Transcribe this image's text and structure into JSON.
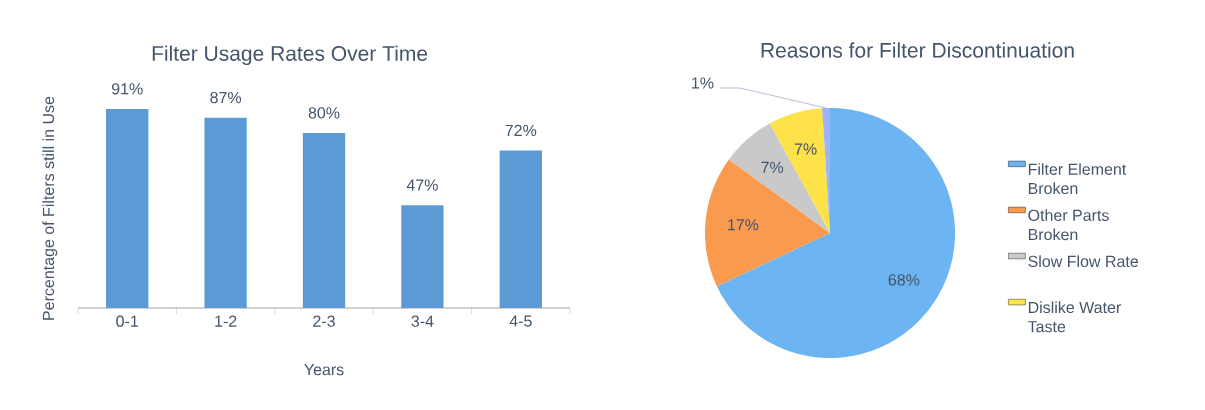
{
  "chart_data": [
    {
      "type": "bar",
      "title": "Filter Usage Rates Over Time",
      "xlabel": "Years",
      "ylabel": "Percentage of Filters still in Use",
      "categories": [
        "0-1",
        "1-2",
        "2-3",
        "3-4",
        "4-5"
      ],
      "values": [
        91,
        87,
        80,
        47,
        72
      ],
      "color": "#5b9bd5",
      "value_labels": [
        "91%",
        "87%",
        "80%",
        "47%",
        "72%"
      ],
      "tick_labels": "x"
    },
    {
      "type": "pie",
      "title": "Reasons for Filter Discontinuation",
      "categories": [
        "Filter Element Broken",
        "Other Parts Broken",
        "Slow Flow Rate",
        "Dislike Water Taste",
        null
      ],
      "values": [
        68,
        17,
        7,
        7,
        1
      ],
      "colors": [
        "#6cb4f2",
        "#f99a4f",
        "#c9c9c9",
        "#fde24a",
        "#9db3f5"
      ],
      "value_labels": [
        "68%",
        "17%",
        "7%",
        "7%",
        "1%"
      ],
      "legend": "right"
    }
  ]
}
